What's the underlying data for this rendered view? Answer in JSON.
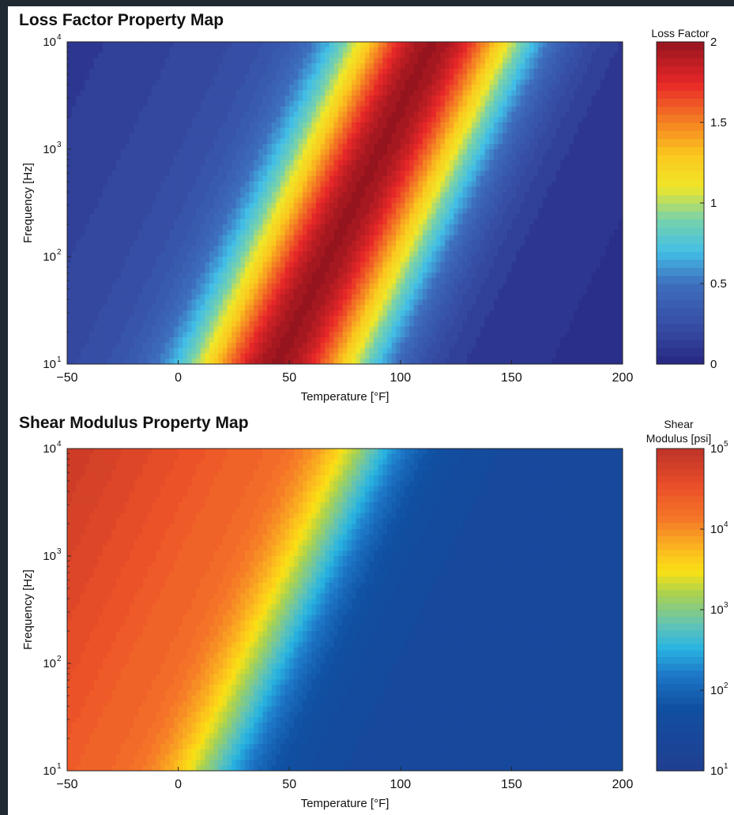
{
  "chart_data": [
    {
      "type": "heatmap",
      "title": "Loss Factor Property Map",
      "xlabel": "Temperature [°F]",
      "ylabel": "Frequency [Hz]",
      "xlim": [
        -50,
        200
      ],
      "ylim": [
        10,
        10000
      ],
      "y_scale": "log",
      "x_ticks": [
        "−50",
        "0",
        "50",
        "100",
        "150",
        "200"
      ],
      "x_tick_values": [
        -50,
        0,
        50,
        100,
        150,
        200
      ],
      "y_ticks": [
        {
          "value": 10,
          "base": "10",
          "exp": "1"
        },
        {
          "value": 100,
          "base": "10",
          "exp": "2"
        },
        {
          "value": 1000,
          "base": "10",
          "exp": "3"
        },
        {
          "value": 10000,
          "base": "10",
          "exp": "4"
        }
      ],
      "colorbar": {
        "label": "Loss Factor",
        "range": [
          0,
          2
        ],
        "ticks": [
          {
            "value": 0,
            "label": "0"
          },
          {
            "value": 0.5,
            "label": "0.5"
          },
          {
            "value": 1,
            "label": "1"
          },
          {
            "value": 1.5,
            "label": "1.5"
          },
          {
            "value": 2,
            "label": "2"
          }
        ]
      },
      "peak_ridge": {
        "temperature_at_10Hz": 45,
        "temperature_at_10000Hz": 115,
        "peak_value": 1.85
      },
      "grid": false
    },
    {
      "type": "heatmap",
      "title": "Shear Modulus Property Map",
      "xlabel": "Temperature [°F]",
      "ylabel": "Frequency [Hz]",
      "xlim": [
        -50,
        200
      ],
      "ylim": [
        10,
        10000
      ],
      "y_scale": "log",
      "x_ticks": [
        "−50",
        "0",
        "50",
        "100",
        "150",
        "200"
      ],
      "x_tick_values": [
        -50,
        0,
        50,
        100,
        150,
        200
      ],
      "y_ticks": [
        {
          "value": 10,
          "base": "10",
          "exp": "1"
        },
        {
          "value": 100,
          "base": "10",
          "exp": "2"
        },
        {
          "value": 1000,
          "base": "10",
          "exp": "3"
        },
        {
          "value": 10000,
          "base": "10",
          "exp": "4"
        }
      ],
      "colorbar": {
        "label_lines": [
          "Shear",
          "Modulus [psi]"
        ],
        "scale": "log",
        "range": [
          10,
          100000
        ],
        "ticks": [
          {
            "value": 10,
            "base": "10",
            "exp": "1"
          },
          {
            "value": 100,
            "base": "10",
            "exp": "2"
          },
          {
            "value": 1000,
            "base": "10",
            "exp": "3"
          },
          {
            "value": 10000,
            "base": "10",
            "exp": "4"
          },
          {
            "value": 100000,
            "base": "10",
            "exp": "5"
          }
        ]
      },
      "transition_line": {
        "temperature_at_10Hz": 15,
        "temperature_at_10000Hz": 85
      },
      "grid": false
    }
  ],
  "colors": {
    "page_background": "#1f2a33",
    "figure_background": "#ffffff"
  }
}
